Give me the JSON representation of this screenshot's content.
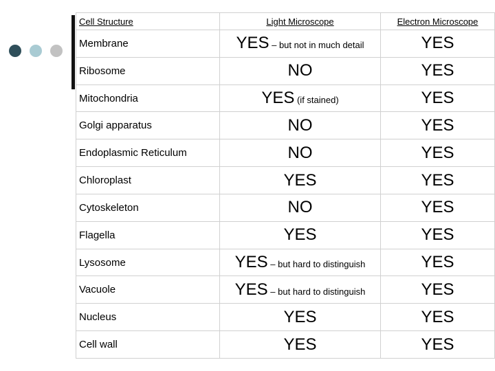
{
  "table": {
    "headers": [
      "Cell Structure",
      "Light Microscope",
      "Electron Microscope"
    ],
    "rows": [
      {
        "structure": "Membrane",
        "light": "YES",
        "light_note": " – but not in much detail",
        "electron": "YES"
      },
      {
        "structure": "Ribosome",
        "light": "NO",
        "light_note": "",
        "electron": "YES"
      },
      {
        "structure": "Mitochondria",
        "light": "YES",
        "light_note": " (if stained)",
        "electron": "YES"
      },
      {
        "structure": "Golgi apparatus",
        "light": "NO",
        "light_note": "",
        "electron": "YES"
      },
      {
        "structure": "Endoplasmic Reticulum",
        "light": "NO",
        "light_note": "",
        "electron": "YES"
      },
      {
        "structure": "Chloroplast",
        "light": "YES",
        "light_note": "",
        "electron": "YES"
      },
      {
        "structure": "Cytoskeleton",
        "light": "NO",
        "light_note": "",
        "electron": "YES"
      },
      {
        "structure": "Flagella",
        "light": "YES",
        "light_note": "",
        "electron": "YES"
      },
      {
        "structure": "Lysosome",
        "light": "YES",
        "light_note": " – but hard to distinguish",
        "electron": "YES"
      },
      {
        "structure": "Vacuole",
        "light": "YES",
        "light_note": " – but hard to distinguish",
        "electron": "YES"
      },
      {
        "structure": "Nucleus",
        "light": "YES",
        "light_note": "",
        "electron": "YES"
      },
      {
        "structure": "Cell wall",
        "light": "YES",
        "light_note": "",
        "electron": "YES"
      }
    ]
  },
  "decor": {
    "dot_colors": [
      "#2f4f5a",
      "#a9cbd3",
      "#c2c2c2"
    ],
    "bar_color": "#111111"
  }
}
